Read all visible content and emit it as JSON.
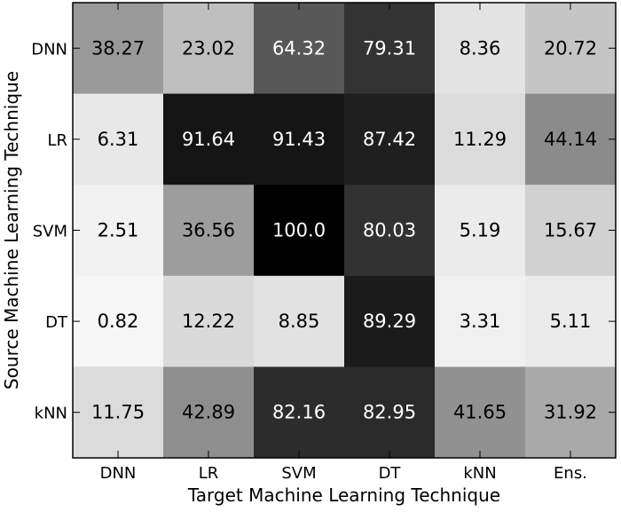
{
  "chart_data": {
    "type": "heatmap",
    "title": "",
    "xlabel": "Target Machine Learning Technique",
    "ylabel": "Source Machine Learning Technique",
    "x_categories": [
      "DNN",
      "LR",
      "SVM",
      "DT",
      "kNN",
      "Ens."
    ],
    "y_categories": [
      "DNN",
      "LR",
      "SVM",
      "DT",
      "kNN"
    ],
    "values": [
      [
        38.27,
        23.02,
        64.32,
        79.31,
        8.36,
        20.72
      ],
      [
        6.31,
        91.64,
        91.43,
        87.42,
        11.29,
        44.14
      ],
      [
        2.51,
        36.56,
        100.0,
        80.03,
        5.19,
        15.67
      ],
      [
        0.82,
        12.22,
        8.85,
        89.29,
        3.31,
        5.11
      ],
      [
        11.75,
        42.89,
        82.16,
        82.95,
        41.65,
        31.92
      ]
    ],
    "value_labels": [
      [
        "38.27",
        "23.02",
        "64.32",
        "79.31",
        "8.36",
        "20.72"
      ],
      [
        "6.31",
        "91.64",
        "91.43",
        "87.42",
        "11.29",
        "44.14"
      ],
      [
        "2.51",
        "36.56",
        "100.0",
        "80.03",
        "5.19",
        "15.67"
      ],
      [
        "0.82",
        "12.22",
        "8.85",
        "89.29",
        "3.31",
        "5.11"
      ],
      [
        "11.75",
        "42.89",
        "82.16",
        "82.95",
        "41.65",
        "31.92"
      ]
    ],
    "colormap": "greys",
    "vmin": 0,
    "vmax": 100,
    "grid": false,
    "legend": "none"
  }
}
